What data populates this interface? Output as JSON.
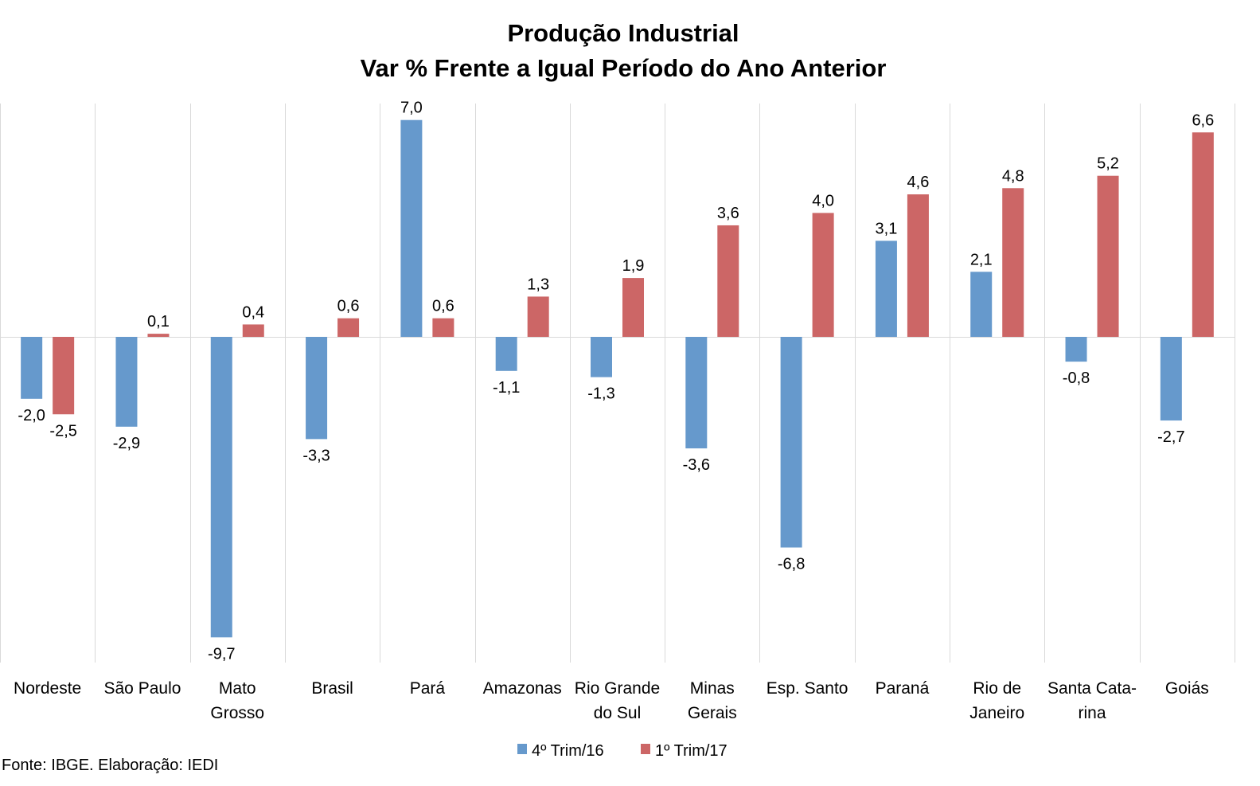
{
  "chart_data": {
    "type": "bar",
    "title_lines": [
      "Produção Industrial",
      "Var % Frente a Igual Período do Ano Anterior"
    ],
    "categories": [
      [
        "Nordeste"
      ],
      [
        "São Paulo"
      ],
      [
        "Mato",
        "Grosso"
      ],
      [
        "Brasil"
      ],
      [
        "Pará"
      ],
      [
        "Amazonas"
      ],
      [
        "Rio Grande",
        "do Sul"
      ],
      [
        "Minas",
        "Gerais"
      ],
      [
        "Esp. Santo"
      ],
      [
        "Paraná"
      ],
      [
        "Rio de",
        "Janeiro"
      ],
      [
        "Santa Cata-",
        "rina"
      ],
      [
        "Goiás"
      ]
    ],
    "series": [
      {
        "name": "4º Trim/16",
        "color": "#6699CC",
        "values": [
          -2.0,
          -2.9,
          -9.7,
          -3.3,
          7.0,
          -1.1,
          -1.3,
          -3.6,
          -6.8,
          3.1,
          2.1,
          -0.8,
          -2.7
        ],
        "labels": [
          "-2,0",
          "-2,9",
          "-9,7",
          "-3,3",
          "7,0",
          "-1,1",
          "-1,3",
          "-3,6",
          "-6,8",
          "3,1",
          "2,1",
          "-0,8",
          "-2,7"
        ]
      },
      {
        "name": "1º Trim/17",
        "color": "#CC6666",
        "values": [
          -2.5,
          0.1,
          0.4,
          0.6,
          0.6,
          1.3,
          1.9,
          3.6,
          4.0,
          4.6,
          4.8,
          5.2,
          6.6
        ],
        "labels": [
          "-2,5",
          "0,1",
          "0,4",
          "0,6",
          "0,6",
          "1,3",
          "1,9",
          "3,6",
          "4,0",
          "4,6",
          "4,8",
          "5,2",
          "6,6"
        ]
      }
    ],
    "ylim": [
      -10.5,
      7.5
    ],
    "grid": "vertical category separators",
    "legend_position": "bottom"
  },
  "source_note": "Fonte: IBGE. Elaboração: IEDI"
}
